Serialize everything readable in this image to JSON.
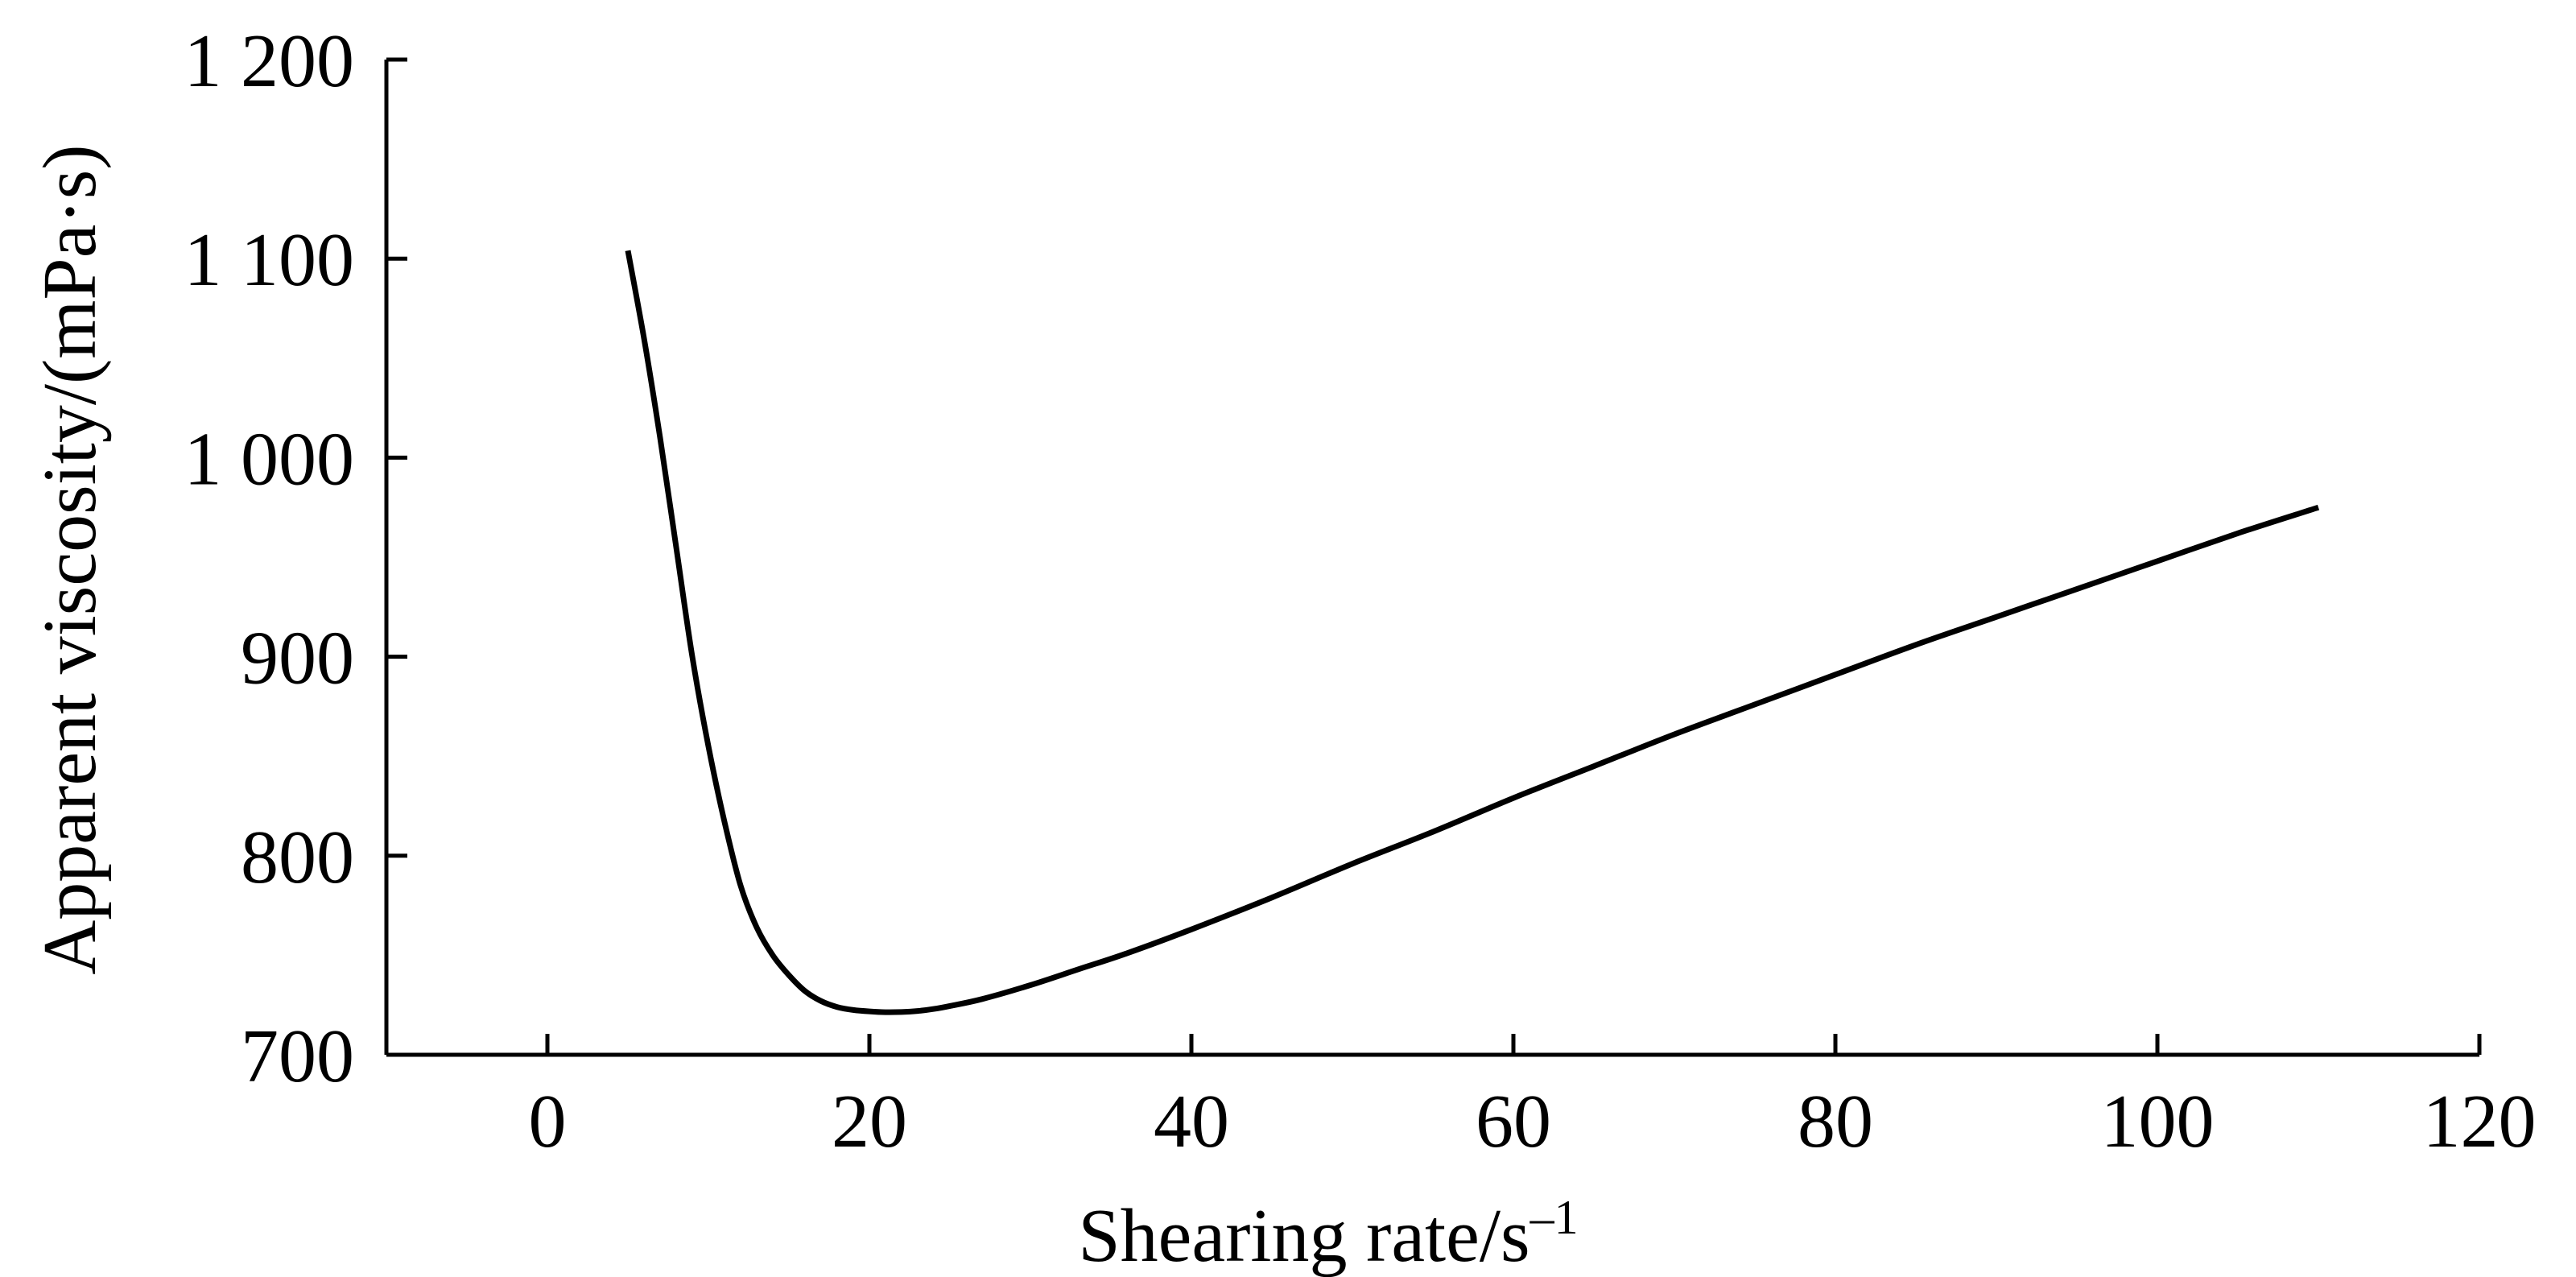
{
  "chart_data": {
    "type": "line",
    "xlabel": "Shearing rate/s",
    "xlabel_sup": "–1",
    "ylabel": "Apparent viscosity/(mPa·s)",
    "xlim": [
      -10,
      120
    ],
    "ylim": [
      700,
      1200
    ],
    "x_ticks": [
      0,
      20,
      40,
      60,
      80,
      100,
      120
    ],
    "x_tick_labels": [
      "0",
      "20",
      "40",
      "60",
      "80",
      "100",
      "120"
    ],
    "y_ticks": [
      700,
      800,
      900,
      1000,
      1100,
      1200
    ],
    "y_tick_labels": [
      "700",
      "800",
      "900",
      "1 000",
      "1 100",
      "1 200"
    ],
    "grid": false,
    "series": [
      {
        "x": [
          5,
          6,
          7,
          8,
          9,
          10,
          11,
          12,
          13,
          14,
          15,
          16,
          17,
          18,
          19,
          20,
          21,
          22,
          23,
          24,
          25,
          27,
          30,
          33,
          36,
          40,
          45,
          50,
          55,
          60,
          65,
          70,
          75,
          80,
          85,
          90,
          95,
          100,
          105,
          110
        ],
        "y": [
          1104,
          1060,
          1010,
          955,
          900,
          855,
          817,
          785,
          764,
          750,
          740,
          732,
          727,
          724,
          722.5,
          721.8,
          721.4,
          721.5,
          722,
          723,
          724.5,
          728,
          735,
          743,
          751,
          763,
          779,
          796,
          812,
          829,
          845,
          861,
          876,
          891,
          906,
          920,
          934,
          948,
          962,
          975
        ],
        "color": "#000000"
      }
    ]
  }
}
